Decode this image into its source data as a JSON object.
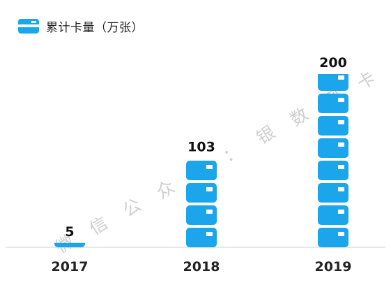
{
  "legend": {
    "label": "累计卡量（万张）"
  },
  "watermark": {
    "text": "微信公众号：银数网卡"
  },
  "colors": {
    "bar": "#1ba6ec",
    "card_chip": "#ffffff",
    "axis": "#d0d0d0"
  },
  "chart_data": {
    "type": "bar",
    "title": "",
    "xlabel": "",
    "ylabel": "",
    "categories": [
      "2017",
      "2018",
      "2019"
    ],
    "series": [
      {
        "name": "累计卡量（万张）",
        "values": [
          5,
          103,
          200
        ]
      }
    ],
    "data_labels": [
      "5",
      "103",
      "200"
    ],
    "ylim": [
      0,
      200
    ],
    "grid": false,
    "legend_position": "top-left"
  }
}
